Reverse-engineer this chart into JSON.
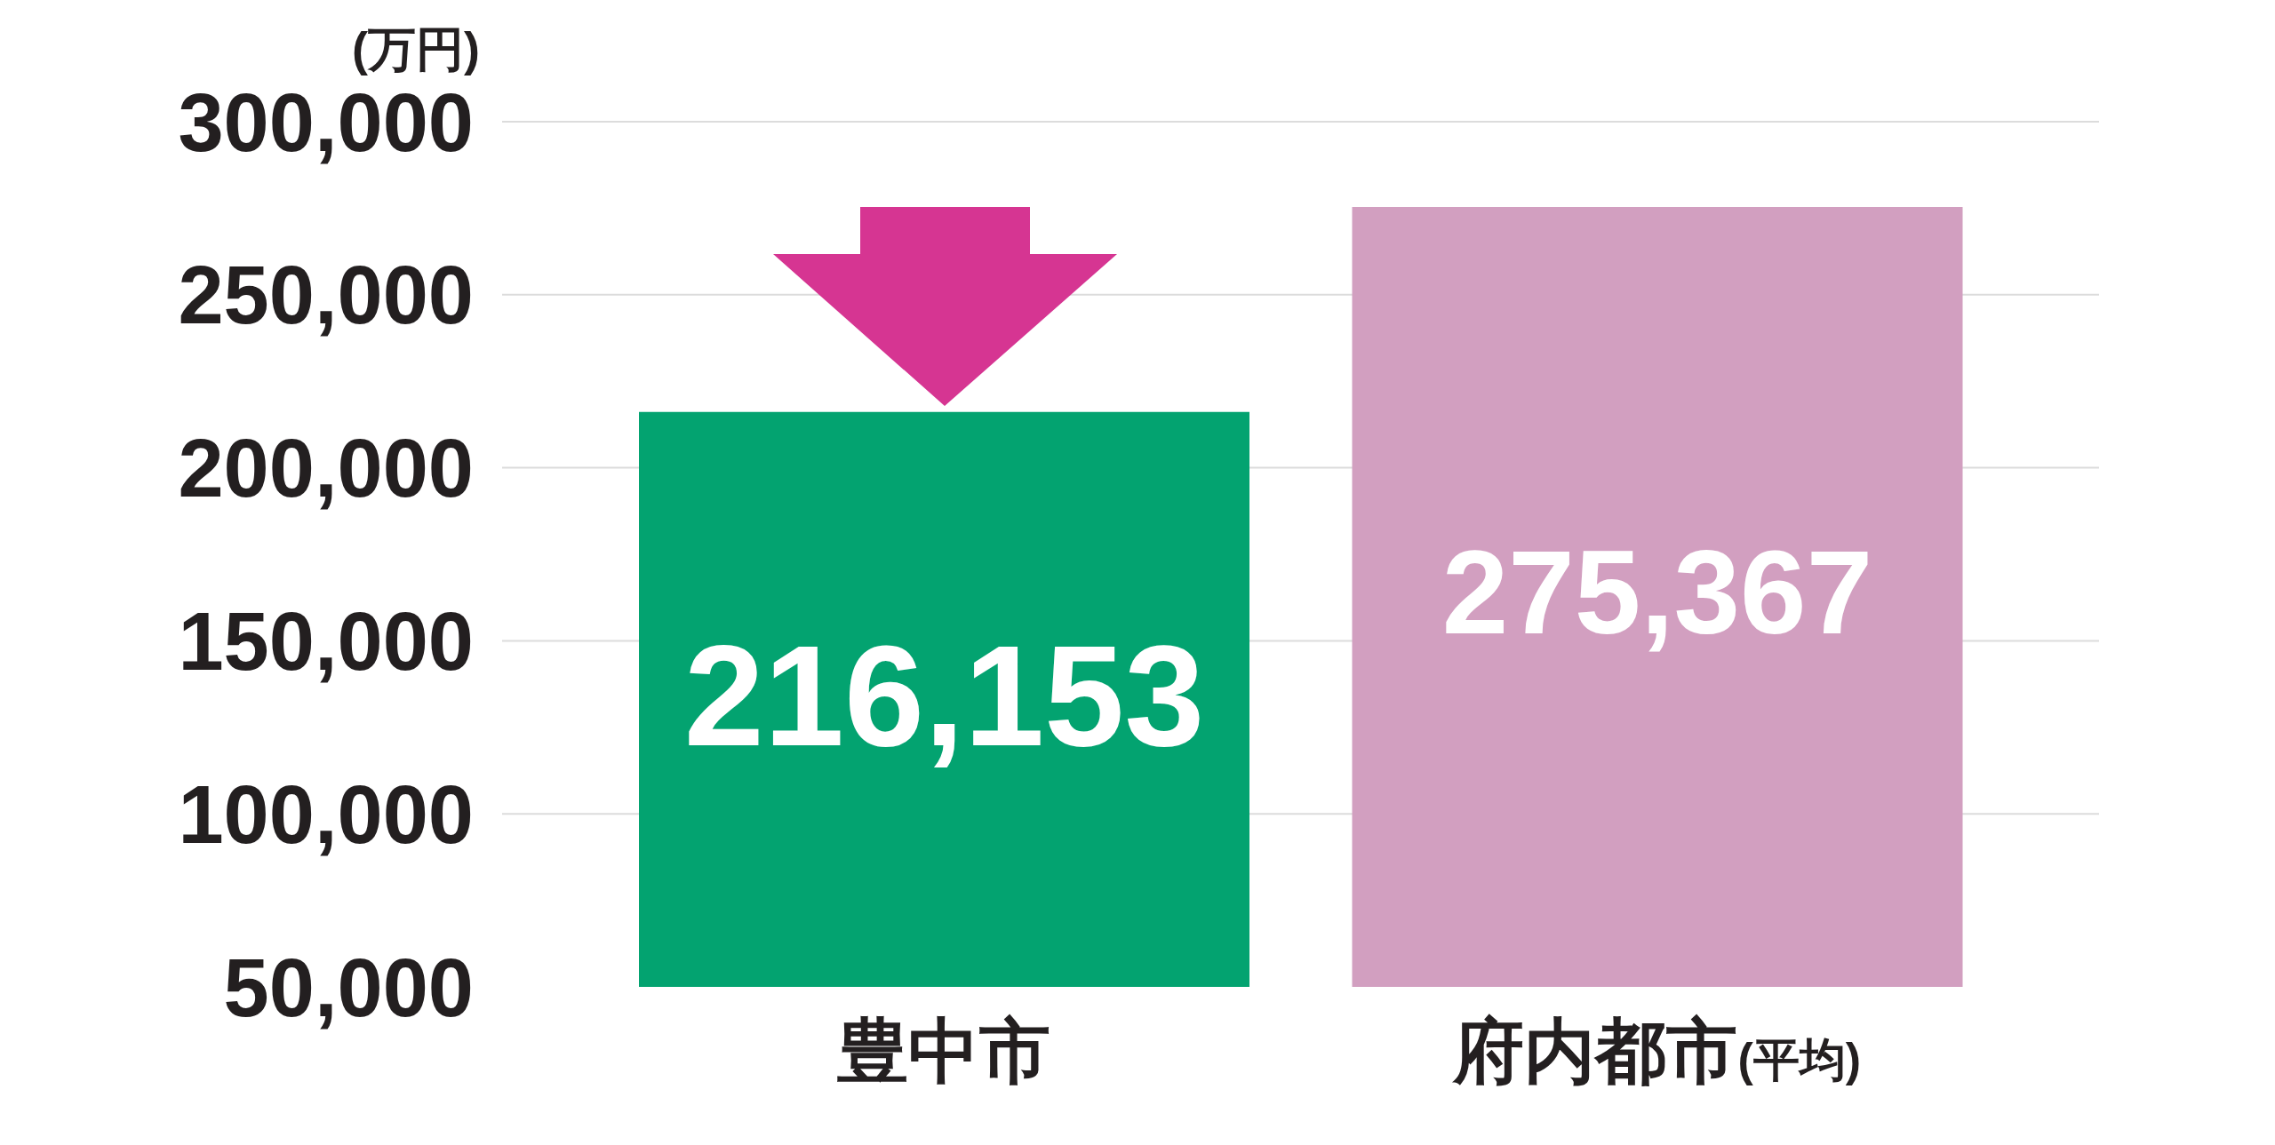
{
  "chart_data": {
    "type": "bar",
    "ylabel": "(万円)",
    "categories": [
      "豊中市",
      "府内都市(平均)"
    ],
    "values": [
      216153,
      275367
    ],
    "value_labels": [
      "216,153",
      "275,367"
    ],
    "colors": [
      "#03a370",
      "#d29fc0"
    ],
    "ylim": [
      50000,
      300000
    ],
    "yticks": [
      {
        "value": 50000,
        "label": "50,000"
      },
      {
        "value": 100000,
        "label": "100,000"
      },
      {
        "value": 150000,
        "label": "150,000"
      },
      {
        "value": 200000,
        "label": "200,000"
      },
      {
        "value": 250000,
        "label": "250,000"
      },
      {
        "value": 300000,
        "label": "300,000"
      }
    ],
    "grid": "y"
  }
}
